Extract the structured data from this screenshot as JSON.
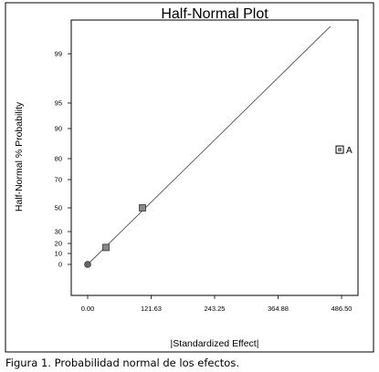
{
  "chart_data": {
    "type": "scatter",
    "title": "Half-Normal Plot",
    "xlabel": "|Standardized Effect|",
    "ylabel": "Half-Normal % Probability",
    "x_ticks": [
      {
        "value": 0,
        "label": "0.00"
      },
      {
        "value": 121.63,
        "label": "121.63"
      },
      {
        "value": 243.25,
        "label": "243.25"
      },
      {
        "value": 364.88,
        "label": "364.88"
      },
      {
        "value": 486.5,
        "label": "486.50"
      }
    ],
    "y_ticks": [
      {
        "value": 0,
        "label": "0"
      },
      {
        "value": 10,
        "label": "10"
      },
      {
        "value": 20,
        "label": "20"
      },
      {
        "value": 30,
        "label": "30"
      },
      {
        "value": 50,
        "label": "50"
      },
      {
        "value": 70,
        "label": "70"
      },
      {
        "value": 80,
        "label": "80"
      },
      {
        "value": 90,
        "label": "90"
      },
      {
        "value": 95,
        "label": "95"
      },
      {
        "value": 99,
        "label": "99"
      }
    ],
    "points": [
      {
        "x": 0,
        "y": 0,
        "marker": "circle"
      },
      {
        "x": 35,
        "y": 16,
        "marker": "square"
      },
      {
        "x": 105,
        "y": 50,
        "marker": "square"
      },
      {
        "x": 483,
        "y": 83,
        "marker": "open-square",
        "label": "A"
      }
    ],
    "reference_line": {
      "from": {
        "x": 0,
        "y": 0
      },
      "to": {
        "x": 465,
        "y": 100
      }
    },
    "grid": false
  },
  "caption": "Figura 1. Probabilidad normal de los efectos."
}
